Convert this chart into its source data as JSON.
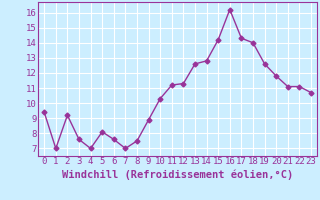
{
  "x": [
    0,
    1,
    2,
    3,
    4,
    5,
    6,
    7,
    8,
    9,
    10,
    11,
    12,
    13,
    14,
    15,
    16,
    17,
    18,
    19,
    20,
    21,
    22,
    23
  ],
  "y": [
    9.4,
    7.0,
    9.2,
    7.6,
    7.0,
    8.1,
    7.6,
    7.0,
    7.5,
    8.9,
    10.3,
    11.2,
    11.3,
    12.6,
    12.8,
    14.2,
    16.2,
    14.3,
    14.0,
    12.6,
    11.8,
    11.1,
    11.1,
    10.7
  ],
  "line_color": "#993399",
  "marker": "D",
  "markersize": 2.5,
  "linewidth": 1.0,
  "background_color": "#cceeff",
  "grid_color": "#ffffff",
  "xlabel": "Windchill (Refroidissement éolien,°C)",
  "tick_color": "#993399",
  "xlim": [
    -0.5,
    23.5
  ],
  "ylim": [
    6.5,
    16.7
  ],
  "yticks": [
    7,
    8,
    9,
    10,
    11,
    12,
    13,
    14,
    15,
    16
  ],
  "xticks": [
    0,
    1,
    2,
    3,
    4,
    5,
    6,
    7,
    8,
    9,
    10,
    11,
    12,
    13,
    14,
    15,
    16,
    17,
    18,
    19,
    20,
    21,
    22,
    23
  ],
  "font_size": 6.5,
  "xlabel_fontsize": 7.5
}
